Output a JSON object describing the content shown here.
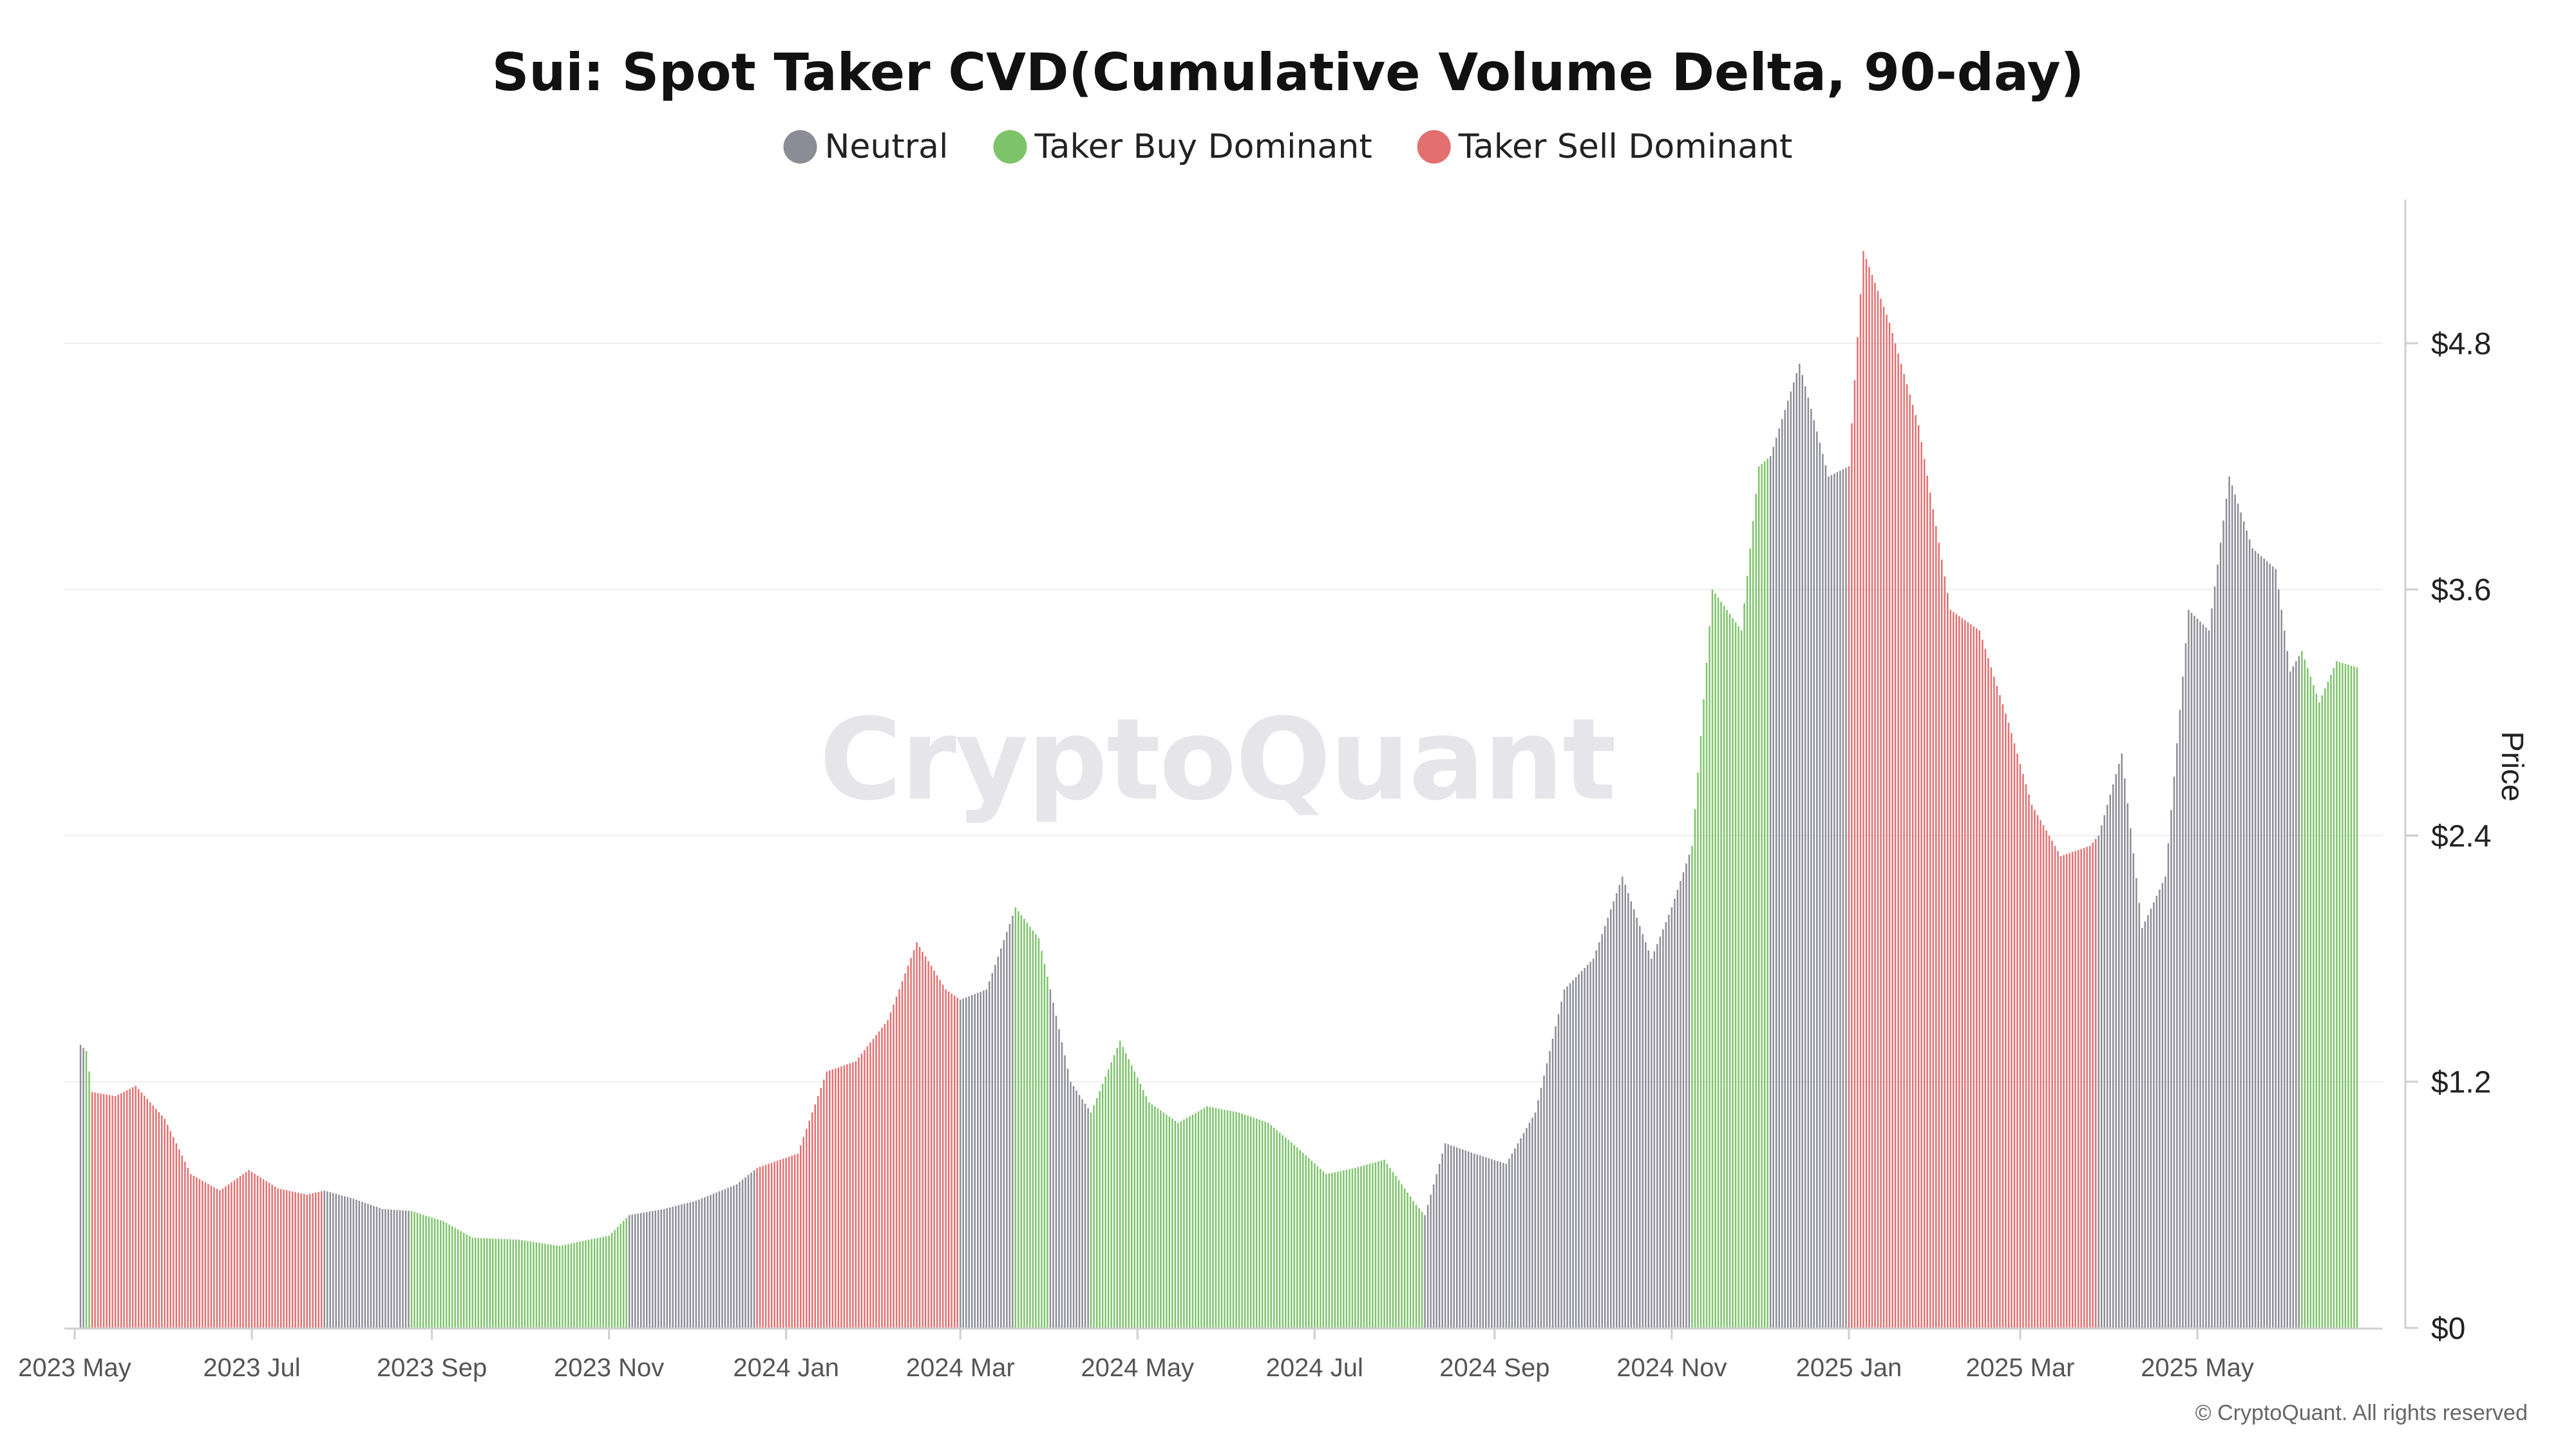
{
  "chart_data": {
    "type": "bar",
    "title": "Sui: Spot Taker CVD(Cumulative Volume Delta, 90-day)",
    "ylabel": "Price",
    "ylim": [
      0,
      5.5
    ],
    "y_ticks": [
      {
        "value": 0,
        "label": "$0"
      },
      {
        "value": 1.2,
        "label": "$1.2"
      },
      {
        "value": 2.4,
        "label": "$2.4"
      },
      {
        "value": 3.6,
        "label": "$3.6"
      },
      {
        "value": 4.8,
        "label": "$4.8"
      }
    ],
    "x_range": [
      "2023-05-03",
      "2025-06-25"
    ],
    "x_ticks": [
      {
        "date": "2023-05-01",
        "label": "2023 May"
      },
      {
        "date": "2023-07-01",
        "label": "2023 Jul"
      },
      {
        "date": "2023-09-01",
        "label": "2023 Sep"
      },
      {
        "date": "2023-11-01",
        "label": "2023 Nov"
      },
      {
        "date": "2024-01-01",
        "label": "2024 Jan"
      },
      {
        "date": "2024-03-01",
        "label": "2024 Mar"
      },
      {
        "date": "2024-05-01",
        "label": "2024 May"
      },
      {
        "date": "2024-07-01",
        "label": "2024 Jul"
      },
      {
        "date": "2024-09-01",
        "label": "2024 Sep"
      },
      {
        "date": "2024-11-01",
        "label": "2024 Nov"
      },
      {
        "date": "2025-01-01",
        "label": "2025 Jan"
      },
      {
        "date": "2025-03-01",
        "label": "2025 Mar"
      },
      {
        "date": "2025-05-01",
        "label": "2025 May"
      }
    ],
    "legend": [
      {
        "name": "Neutral",
        "color": "#8c8c96"
      },
      {
        "name": "Taker Buy Dominant",
        "color": "#7cc36a"
      },
      {
        "name": "Taker Sell Dominant",
        "color": "#e46f6f"
      }
    ],
    "legend_position": "top-center",
    "grid": true,
    "series": [
      {
        "date": "2023-05-03",
        "price": 1.38,
        "regime": "Neutral"
      },
      {
        "date": "2023-05-05",
        "price": 1.35,
        "regime": "Taker Buy Dominant"
      },
      {
        "date": "2023-05-07",
        "price": 1.15,
        "regime": "Taker Sell Dominant"
      },
      {
        "date": "2023-05-15",
        "price": 1.13,
        "regime": "Taker Sell Dominant"
      },
      {
        "date": "2023-05-22",
        "price": 1.18,
        "regime": "Taker Sell Dominant"
      },
      {
        "date": "2023-06-01",
        "price": 1.02,
        "regime": "Taker Sell Dominant"
      },
      {
        "date": "2023-06-10",
        "price": 0.75,
        "regime": "Taker Sell Dominant"
      },
      {
        "date": "2023-06-20",
        "price": 0.67,
        "regime": "Taker Sell Dominant"
      },
      {
        "date": "2023-06-30",
        "price": 0.77,
        "regime": "Taker Sell Dominant"
      },
      {
        "date": "2023-07-10",
        "price": 0.68,
        "regime": "Taker Sell Dominant"
      },
      {
        "date": "2023-07-20",
        "price": 0.65,
        "regime": "Taker Sell Dominant"
      },
      {
        "date": "2023-07-26",
        "price": 0.67,
        "regime": "Neutral"
      },
      {
        "date": "2023-08-05",
        "price": 0.63,
        "regime": "Neutral"
      },
      {
        "date": "2023-08-15",
        "price": 0.58,
        "regime": "Neutral"
      },
      {
        "date": "2023-08-25",
        "price": 0.57,
        "regime": "Taker Buy Dominant"
      },
      {
        "date": "2023-09-05",
        "price": 0.52,
        "regime": "Taker Buy Dominant"
      },
      {
        "date": "2023-09-15",
        "price": 0.44,
        "regime": "Taker Buy Dominant"
      },
      {
        "date": "2023-10-01",
        "price": 0.43,
        "regime": "Taker Buy Dominant"
      },
      {
        "date": "2023-10-15",
        "price": 0.4,
        "regime": "Taker Buy Dominant"
      },
      {
        "date": "2023-10-25",
        "price": 0.43,
        "regime": "Taker Buy Dominant"
      },
      {
        "date": "2023-11-01",
        "price": 0.45,
        "regime": "Taker Buy Dominant"
      },
      {
        "date": "2023-11-08",
        "price": 0.55,
        "regime": "Neutral"
      },
      {
        "date": "2023-11-20",
        "price": 0.58,
        "regime": "Neutral"
      },
      {
        "date": "2023-12-01",
        "price": 0.62,
        "regime": "Neutral"
      },
      {
        "date": "2023-12-15",
        "price": 0.7,
        "regime": "Neutral"
      },
      {
        "date": "2023-12-22",
        "price": 0.78,
        "regime": "Taker Sell Dominant"
      },
      {
        "date": "2024-01-05",
        "price": 0.85,
        "regime": "Taker Sell Dominant"
      },
      {
        "date": "2024-01-15",
        "price": 1.25,
        "regime": "Taker Sell Dominant"
      },
      {
        "date": "2024-01-25",
        "price": 1.3,
        "regime": "Taker Sell Dominant"
      },
      {
        "date": "2024-02-05",
        "price": 1.5,
        "regime": "Taker Sell Dominant"
      },
      {
        "date": "2024-02-15",
        "price": 1.88,
        "regime": "Taker Sell Dominant"
      },
      {
        "date": "2024-02-25",
        "price": 1.65,
        "regime": "Taker Sell Dominant"
      },
      {
        "date": "2024-03-01",
        "price": 1.6,
        "regime": "Neutral"
      },
      {
        "date": "2024-03-10",
        "price": 1.65,
        "regime": "Neutral"
      },
      {
        "date": "2024-03-20",
        "price": 2.05,
        "regime": "Taker Buy Dominant"
      },
      {
        "date": "2024-03-28",
        "price": 1.9,
        "regime": "Taker Buy Dominant"
      },
      {
        "date": "2024-04-01",
        "price": 1.65,
        "regime": "Neutral"
      },
      {
        "date": "2024-04-08",
        "price": 1.2,
        "regime": "Neutral"
      },
      {
        "date": "2024-04-15",
        "price": 1.05,
        "regime": "Taker Buy Dominant"
      },
      {
        "date": "2024-04-25",
        "price": 1.4,
        "regime": "Taker Buy Dominant"
      },
      {
        "date": "2024-05-05",
        "price": 1.1,
        "regime": "Taker Buy Dominant"
      },
      {
        "date": "2024-05-15",
        "price": 1.0,
        "regime": "Taker Buy Dominant"
      },
      {
        "date": "2024-05-25",
        "price": 1.08,
        "regime": "Taker Buy Dominant"
      },
      {
        "date": "2024-06-05",
        "price": 1.05,
        "regime": "Taker Buy Dominant"
      },
      {
        "date": "2024-06-15",
        "price": 1.0,
        "regime": "Taker Buy Dominant"
      },
      {
        "date": "2024-06-25",
        "price": 0.88,
        "regime": "Taker Buy Dominant"
      },
      {
        "date": "2024-07-05",
        "price": 0.75,
        "regime": "Taker Buy Dominant"
      },
      {
        "date": "2024-07-15",
        "price": 0.78,
        "regime": "Taker Buy Dominant"
      },
      {
        "date": "2024-07-25",
        "price": 0.82,
        "regime": "Taker Buy Dominant"
      },
      {
        "date": "2024-08-05",
        "price": 0.6,
        "regime": "Taker Buy Dominant"
      },
      {
        "date": "2024-08-08",
        "price": 0.55,
        "regime": "Neutral"
      },
      {
        "date": "2024-08-15",
        "price": 0.9,
        "regime": "Neutral"
      },
      {
        "date": "2024-08-25",
        "price": 0.85,
        "regime": "Neutral"
      },
      {
        "date": "2024-09-05",
        "price": 0.8,
        "regime": "Neutral"
      },
      {
        "date": "2024-09-15",
        "price": 1.05,
        "regime": "Neutral"
      },
      {
        "date": "2024-09-25",
        "price": 1.65,
        "regime": "Neutral"
      },
      {
        "date": "2024-10-05",
        "price": 1.8,
        "regime": "Neutral"
      },
      {
        "date": "2024-10-15",
        "price": 2.2,
        "regime": "Neutral"
      },
      {
        "date": "2024-10-25",
        "price": 1.8,
        "regime": "Neutral"
      },
      {
        "date": "2024-11-01",
        "price": 2.05,
        "regime": "Neutral"
      },
      {
        "date": "2024-11-08",
        "price": 2.35,
        "regime": "Taker Buy Dominant"
      },
      {
        "date": "2024-11-15",
        "price": 3.6,
        "regime": "Taker Buy Dominant"
      },
      {
        "date": "2024-11-25",
        "price": 3.4,
        "regime": "Taker Buy Dominant"
      },
      {
        "date": "2024-12-01",
        "price": 4.2,
        "regime": "Taker Buy Dominant"
      },
      {
        "date": "2024-12-05",
        "price": 4.25,
        "regime": "Neutral"
      },
      {
        "date": "2024-12-15",
        "price": 4.7,
        "regime": "Neutral"
      },
      {
        "date": "2024-12-25",
        "price": 4.15,
        "regime": "Neutral"
      },
      {
        "date": "2025-01-01",
        "price": 4.2,
        "regime": "Taker Sell Dominant"
      },
      {
        "date": "2025-01-06",
        "price": 5.25,
        "regime": "Taker Sell Dominant"
      },
      {
        "date": "2025-01-15",
        "price": 4.9,
        "regime": "Taker Sell Dominant"
      },
      {
        "date": "2025-01-25",
        "price": 4.4,
        "regime": "Taker Sell Dominant"
      },
      {
        "date": "2025-02-05",
        "price": 3.5,
        "regime": "Taker Sell Dominant"
      },
      {
        "date": "2025-02-15",
        "price": 3.4,
        "regime": "Taker Sell Dominant"
      },
      {
        "date": "2025-02-25",
        "price": 2.95,
        "regime": "Taker Sell Dominant"
      },
      {
        "date": "2025-03-05",
        "price": 2.55,
        "regime": "Taker Sell Dominant"
      },
      {
        "date": "2025-03-15",
        "price": 2.3,
        "regime": "Taker Sell Dominant"
      },
      {
        "date": "2025-03-25",
        "price": 2.35,
        "regime": "Taker Sell Dominant"
      },
      {
        "date": "2025-03-28",
        "price": 2.4,
        "regime": "Neutral"
      },
      {
        "date": "2025-04-05",
        "price": 2.8,
        "regime": "Neutral"
      },
      {
        "date": "2025-04-12",
        "price": 1.95,
        "regime": "Neutral"
      },
      {
        "date": "2025-04-20",
        "price": 2.2,
        "regime": "Neutral"
      },
      {
        "date": "2025-04-28",
        "price": 3.5,
        "regime": "Neutral"
      },
      {
        "date": "2025-05-05",
        "price": 3.4,
        "regime": "Neutral"
      },
      {
        "date": "2025-05-12",
        "price": 4.15,
        "regime": "Neutral"
      },
      {
        "date": "2025-05-20",
        "price": 3.8,
        "regime": "Neutral"
      },
      {
        "date": "2025-05-28",
        "price": 3.7,
        "regime": "Neutral"
      },
      {
        "date": "2025-06-02",
        "price": 3.2,
        "regime": "Neutral"
      },
      {
        "date": "2025-06-06",
        "price": 3.3,
        "regime": "Taker Buy Dominant"
      },
      {
        "date": "2025-06-12",
        "price": 3.05,
        "regime": "Taker Buy Dominant"
      },
      {
        "date": "2025-06-18",
        "price": 3.25,
        "regime": "Taker Buy Dominant"
      },
      {
        "date": "2025-06-25",
        "price": 3.22,
        "regime": "Taker Buy Dominant"
      }
    ]
  },
  "watermark": "CryptoQuant",
  "copyright": "© CryptoQuant. All rights reserved"
}
